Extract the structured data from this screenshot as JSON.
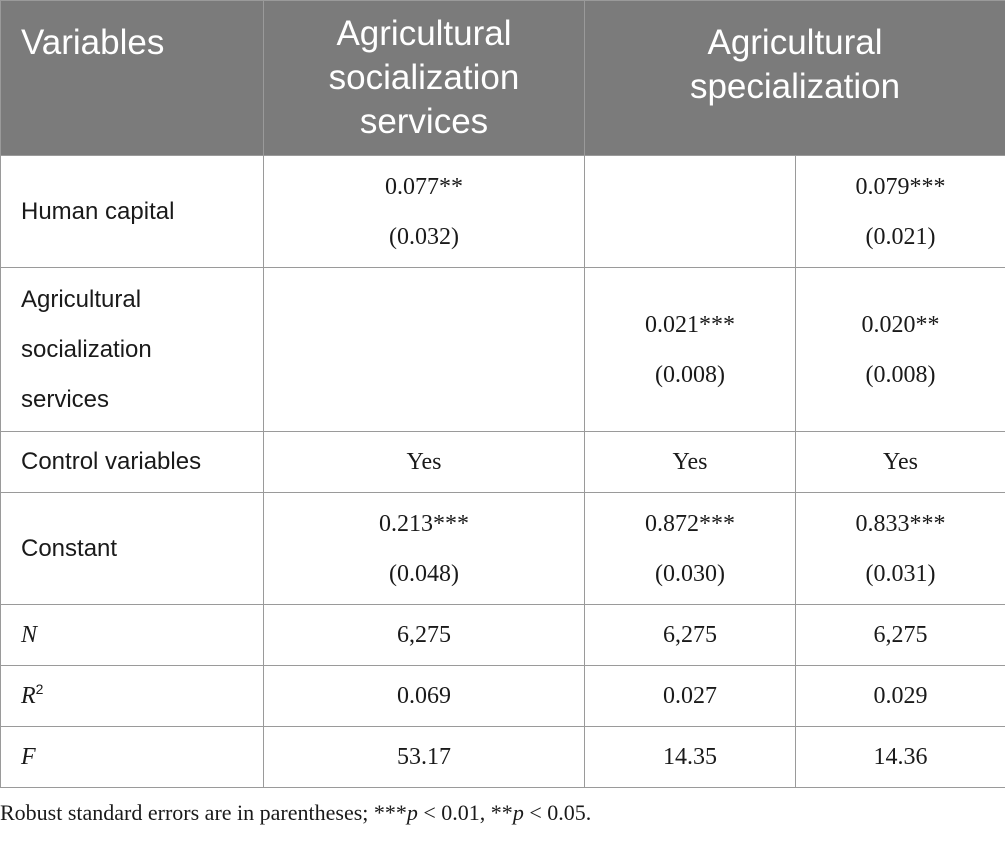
{
  "header": {
    "variables": "Variables",
    "socialization": "Agricultural socialization services",
    "specialization": "Agricultural specialization"
  },
  "rows": {
    "human_capital": {
      "label": "Human capital",
      "c1": "0.077**",
      "c1_se": "(0.032)",
      "c2": "",
      "c2_se": "",
      "c3": "0.079***",
      "c3_se": "(0.021)"
    },
    "services": {
      "label_line1": "Agricultural",
      "label_line2": "socialization",
      "label_line3": "services",
      "c1": "",
      "c1_se": "",
      "c2": "0.021***",
      "c2_se": "(0.008)",
      "c3": "0.020**",
      "c3_se": "(0.008)"
    },
    "controls": {
      "label": "Control variables",
      "c1": "Yes",
      "c2": "Yes",
      "c3": "Yes"
    },
    "constant": {
      "label": "Constant",
      "c1": "0.213***",
      "c1_se": "(0.048)",
      "c2": "0.872***",
      "c2_se": "(0.030)",
      "c3": "0.833***",
      "c3_se": "(0.031)"
    },
    "n": {
      "label": "N",
      "c1": "6,275",
      "c2": "6,275",
      "c3": "6,275"
    },
    "r2": {
      "label": "R",
      "label_sup": "2",
      "c1": "0.069",
      "c2": "0.027",
      "c3": "0.029"
    },
    "f": {
      "label": "F",
      "c1": "53.17",
      "c2": "14.35",
      "c3": "14.36"
    }
  },
  "note": {
    "part1": "Robust standard errors are in parentheses; ***",
    "p1": "p",
    "part2": " < 0.01, **",
    "p2": "p",
    "part3": " < 0.05."
  }
}
